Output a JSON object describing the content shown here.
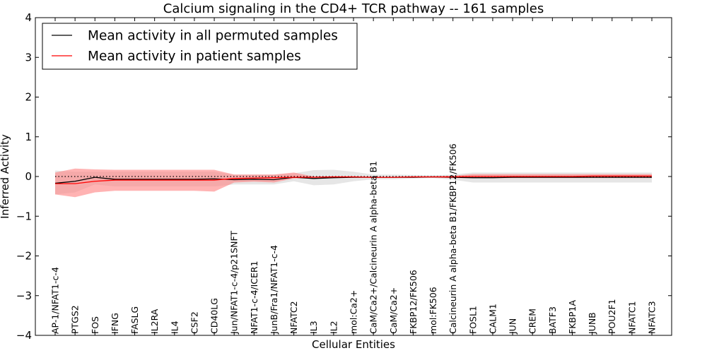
{
  "chart_data": {
    "type": "line",
    "title": "Calcium signaling in the CD4+ TCR pathway -- 161 samples",
    "xlabel": "Cellular Entities",
    "ylabel": "Inferred Activity",
    "ylim": [
      -4,
      4
    ],
    "yticks": [
      -4,
      -3,
      -2,
      -1,
      0,
      1,
      2,
      3,
      4
    ],
    "ytick_labels": [
      "−4",
      "−3",
      "−2",
      "−1",
      "0",
      "1",
      "2",
      "3",
      "4"
    ],
    "reference_line": {
      "y": 0,
      "style": "dotted"
    },
    "categories": [
      "AP-1/NFAT1-c-4",
      "PTGS2",
      "FOS",
      "IFNG",
      "FASLG",
      "IL2RA",
      "IL4",
      "CSF2",
      "CD40LG",
      "Jun/NFAT1-c-4/p21SNFT",
      "NFAT1-c-4/ICER1",
      "JunB/Fra1/NFAT1-c-4",
      "NFATC2",
      "IL3",
      "IL2",
      "mol:Ca2+",
      "CaM/Ca2+/Calcineurin A alpha-beta B1",
      "CaM/Ca2+",
      "FKBP12/FK506",
      "mol:FK506",
      "Calcineurin A alpha-beta B1/FKBP12/FK506",
      "FOSL1",
      "CALM1",
      "JUN",
      "CREM",
      "BATF3",
      "FKBP1A",
      "JUNB",
      "POU2F1",
      "NFATC1",
      "NFATC3"
    ],
    "series": [
      {
        "name": "Mean activity in all permuted samples",
        "color": "#000000",
        "band_color": "#c8c8c8",
        "values": [
          -0.17,
          -0.12,
          -0.02,
          -0.07,
          -0.07,
          -0.07,
          -0.07,
          -0.07,
          -0.06,
          -0.08,
          -0.07,
          -0.08,
          -0.02,
          -0.05,
          -0.03,
          -0.02,
          -0.02,
          -0.02,
          -0.02,
          -0.01,
          -0.02,
          -0.03,
          -0.03,
          -0.02,
          -0.02,
          -0.02,
          -0.02,
          -0.02,
          -0.02,
          -0.02,
          -0.02
        ],
        "band_upper": [
          0.15,
          0.12,
          0.12,
          0.12,
          0.12,
          0.12,
          0.12,
          0.12,
          0.12,
          0.05,
          0.05,
          0.05,
          0.08,
          0.16,
          0.17,
          0.12,
          0.05,
          0.05,
          0.04,
          0.03,
          0.05,
          0.1,
          0.1,
          0.1,
          0.1,
          0.1,
          0.1,
          0.1,
          0.1,
          0.1,
          0.1
        ],
        "band_lower": [
          -0.45,
          -0.4,
          -0.2,
          -0.25,
          -0.25,
          -0.25,
          -0.25,
          -0.25,
          -0.25,
          -0.2,
          -0.2,
          -0.2,
          -0.12,
          -0.22,
          -0.2,
          -0.12,
          -0.07,
          -0.07,
          -0.05,
          -0.04,
          -0.08,
          -0.15,
          -0.15,
          -0.15,
          -0.15,
          -0.15,
          -0.15,
          -0.15,
          -0.15,
          -0.15,
          -0.15
        ]
      },
      {
        "name": "Mean activity in patient samples",
        "color": "#ff0000",
        "band_color": "#ff8080",
        "values": [
          -0.18,
          -0.18,
          -0.12,
          -0.09,
          -0.09,
          -0.09,
          -0.09,
          -0.09,
          -0.09,
          -0.05,
          -0.04,
          -0.03,
          -0.02,
          -0.02,
          -0.01,
          -0.01,
          -0.02,
          -0.02,
          -0.01,
          -0.01,
          -0.01,
          0.0,
          0.0,
          0.0,
          0.0,
          0.0,
          0.0,
          0.01,
          0.01,
          0.01,
          0.01
        ],
        "band_upper": [
          0.1,
          0.2,
          0.18,
          0.17,
          0.17,
          0.17,
          0.17,
          0.17,
          0.17,
          0.05,
          0.05,
          0.05,
          0.1,
          0.0,
          0.0,
          0.0,
          -0.01,
          -0.01,
          0.0,
          0.0,
          0.02,
          0.06,
          0.06,
          0.06,
          0.06,
          0.06,
          0.06,
          0.06,
          0.06,
          0.06,
          0.06
        ],
        "band_lower": [
          -0.45,
          -0.52,
          -0.4,
          -0.36,
          -0.36,
          -0.36,
          -0.36,
          -0.36,
          -0.38,
          -0.15,
          -0.13,
          -0.15,
          -0.05,
          -0.02,
          -0.02,
          -0.02,
          -0.03,
          -0.03,
          -0.02,
          -0.02,
          -0.04,
          -0.04,
          -0.04,
          -0.04,
          -0.04,
          -0.04,
          -0.04,
          -0.04,
          -0.04,
          -0.04,
          -0.04
        ]
      }
    ],
    "legend": {
      "location": "top-left"
    }
  }
}
